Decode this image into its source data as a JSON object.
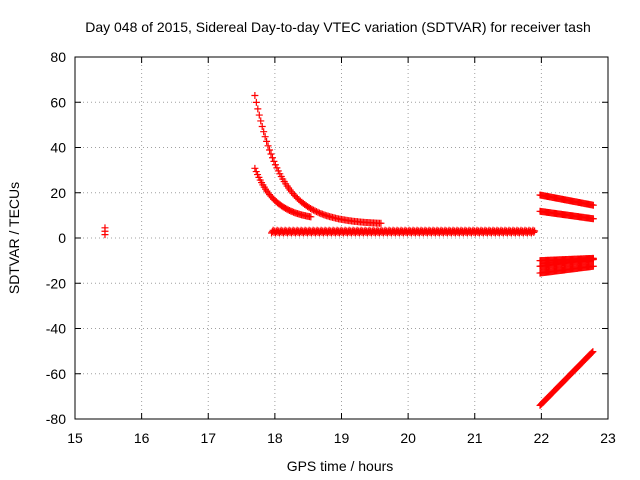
{
  "chart_data": {
    "type": "scatter",
    "title": "Day 048 of 2015, Sidereal Day-to-day VTEC variation (SDTVAR) for receiver tash",
    "xlabel": "GPS time / hours",
    "ylabel": "SDTVAR / TECUs",
    "xlim": [
      15,
      23
    ],
    "ylim": [
      -80,
      80
    ],
    "xticks": [
      15,
      16,
      17,
      18,
      19,
      20,
      21,
      22,
      23
    ],
    "yticks": [
      -80,
      -60,
      -40,
      -20,
      0,
      20,
      40,
      60,
      80
    ],
    "grid": true,
    "marker": "+",
    "series_color": "#ff0000",
    "series": [
      {
        "name": "isolated point",
        "points": [
          [
            15.45,
            4.5
          ],
          [
            15.45,
            3.0
          ],
          [
            15.45,
            1.5
          ]
        ]
      },
      {
        "name": "upper decay arc",
        "start": 17.7,
        "end": 19.6,
        "step": 0.022,
        "model": "decay",
        "params": {
          "t0": 17.7,
          "a": 57.0,
          "k": 2.5,
          "c": 6.0
        }
      },
      {
        "name": "lower decay arc",
        "start": 17.7,
        "end": 18.55,
        "step": 0.02,
        "model": "decay",
        "params": {
          "t0": 17.7,
          "a": 23.0,
          "k": 3.2,
          "c": 7.8
        }
      },
      {
        "name": "near-zero band",
        "start": 17.95,
        "end": 21.9,
        "step": 0.012,
        "model": "band",
        "params": {
          "base": 2.8,
          "amp": 1.2
        }
      },
      {
        "name": "post-22h band a",
        "start": 21.98,
        "end": 22.78,
        "step": 0.016,
        "model": "linear",
        "params": {
          "y0": 19.0,
          "y1": 14.5
        }
      },
      {
        "name": "post-22h band b",
        "start": 21.98,
        "end": 22.78,
        "step": 0.016,
        "model": "linear",
        "params": {
          "y0": 11.8,
          "y1": 8.5
        }
      },
      {
        "name": "post-22h band c",
        "start": 21.98,
        "end": 22.78,
        "step": 0.016,
        "model": "linear",
        "params": {
          "y0": -10.0,
          "y1": -9.0
        }
      },
      {
        "name": "post-22h band d",
        "start": 21.98,
        "end": 22.78,
        "step": 0.016,
        "model": "linear",
        "params": {
          "y0": -15.5,
          "y1": -12.5
        }
      },
      {
        "name": "post-22h band e",
        "start": 21.98,
        "end": 22.78,
        "step": 0.016,
        "model": "linear",
        "params": {
          "y0": -12.5,
          "y1": -9.5
        }
      },
      {
        "name": "descending line",
        "start": 21.98,
        "end": 22.78,
        "step": 0.013,
        "model": "linear",
        "params": {
          "y0": -74.0,
          "y1": -50.0
        }
      }
    ]
  }
}
